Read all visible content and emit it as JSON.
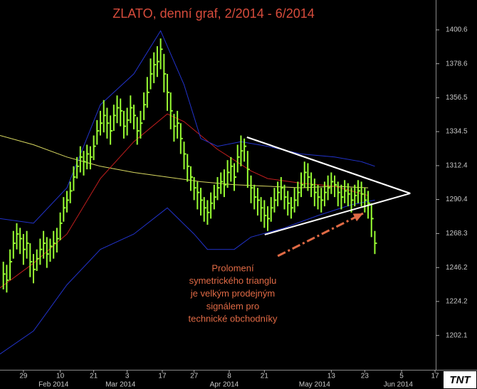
{
  "chart_data": {
    "type": "ohlc",
    "title": "ZLATO, denní graf, 2/2014 - 6/2014",
    "logo": "TNT",
    "xlim": [
      0,
      130.2
    ],
    "ylim": [
      1179.8,
      1420.0
    ],
    "yticks": [
      1400.6,
      1378.6,
      1356.5,
      1334.5,
      1312.4,
      1290.4,
      1268.3,
      1246.2,
      1224.2,
      1202.1
    ],
    "xticks": [
      {
        "value": 7,
        "label": "29"
      },
      {
        "value": 18,
        "label": "10"
      },
      {
        "value": 28,
        "label": "21"
      },
      {
        "value": 38,
        "label": "3"
      },
      {
        "value": 48.5,
        "label": "17"
      },
      {
        "value": 58,
        "label": "27"
      },
      {
        "value": 68.5,
        "label": "8"
      },
      {
        "value": 79,
        "label": "21"
      },
      {
        "value": 99,
        "label": "13"
      },
      {
        "value": 109,
        "label": "23"
      },
      {
        "value": 120,
        "label": "5"
      },
      {
        "value": 130,
        "label": "17"
      }
    ],
    "month_labels": [
      {
        "value": 16,
        "label": "Feb 2014"
      },
      {
        "value": 36,
        "label": "Mar 2014"
      },
      {
        "value": 67,
        "label": "Apr 2014"
      },
      {
        "value": 94,
        "label": "May 2014"
      },
      {
        "value": 119,
        "label": "Jun 2014"
      }
    ],
    "bar_color": "#99ff33",
    "x": [
      1,
      2,
      3,
      4,
      5,
      6,
      7,
      8,
      9,
      10,
      11,
      12,
      13,
      14,
      15,
      16,
      17,
      18,
      19,
      20,
      21,
      22,
      23,
      24,
      25,
      26,
      27,
      28,
      29,
      30,
      31,
      32,
      33,
      34,
      35,
      36,
      37,
      38,
      39,
      40,
      41,
      42,
      43,
      44,
      45,
      46,
      47,
      48,
      49,
      50,
      51,
      52,
      53,
      54,
      55,
      56,
      57,
      58,
      59,
      60,
      61,
      62,
      63,
      64,
      65,
      66,
      67,
      68,
      69,
      70,
      71,
      72,
      73,
      74,
      75,
      76,
      77,
      78,
      79,
      80,
      81,
      82,
      83,
      84,
      85,
      86,
      87,
      88,
      89,
      90,
      91,
      92,
      93,
      94,
      95,
      96,
      97,
      98,
      99,
      100,
      101,
      102,
      103,
      104,
      105,
      106,
      107,
      108,
      109,
      110,
      111,
      112
    ],
    "high": [
      1250,
      1248,
      1258,
      1270,
      1275,
      1272,
      1268,
      1270,
      1262,
      1255,
      1258,
      1265,
      1270,
      1266,
      1265,
      1270,
      1272,
      1282,
      1292,
      1296,
      1302,
      1312,
      1318,
      1325,
      1322,
      1326,
      1325,
      1332,
      1342,
      1348,
      1355,
      1350,
      1345,
      1352,
      1358,
      1356,
      1348,
      1350,
      1358,
      1352,
      1344,
      1348,
      1360,
      1370,
      1382,
      1386,
      1390,
      1395,
      1385,
      1372,
      1360,
      1346,
      1348,
      1340,
      1328,
      1320,
      1312,
      1305,
      1302,
      1298,
      1292,
      1290,
      1295,
      1300,
      1305,
      1308,
      1310,
      1316,
      1318,
      1314,
      1326,
      1332,
      1330,
      1322,
      1306,
      1300,
      1298,
      1292,
      1290,
      1286,
      1292,
      1298,
      1302,
      1305,
      1300,
      1296,
      1292,
      1298,
      1302,
      1308,
      1315,
      1314,
      1308,
      1304,
      1300,
      1298,
      1302,
      1306,
      1308,
      1306,
      1302,
      1300,
      1303,
      1301,
      1298,
      1300,
      1303,
      1302,
      1298,
      1296,
      1288,
      1270
    ],
    "low": [
      1232,
      1230,
      1238,
      1252,
      1258,
      1255,
      1248,
      1252,
      1240,
      1236,
      1244,
      1248,
      1252,
      1246,
      1250,
      1252,
      1256,
      1264,
      1276,
      1282,
      1288,
      1296,
      1304,
      1308,
      1306,
      1310,
      1310,
      1316,
      1326,
      1332,
      1334,
      1330,
      1326,
      1335,
      1340,
      1338,
      1330,
      1332,
      1340,
      1336,
      1326,
      1330,
      1342,
      1350,
      1362,
      1366,
      1370,
      1375,
      1360,
      1348,
      1336,
      1328,
      1330,
      1320,
      1310,
      1302,
      1296,
      1290,
      1284,
      1280,
      1276,
      1274,
      1278,
      1284,
      1290,
      1294,
      1292,
      1298,
      1302,
      1296,
      1308,
      1312,
      1315,
      1298,
      1288,
      1284,
      1280,
      1276,
      1272,
      1270,
      1276,
      1282,
      1286,
      1290,
      1284,
      1280,
      1278,
      1282,
      1286,
      1292,
      1298,
      1296,
      1292,
      1286,
      1284,
      1282,
      1286,
      1290,
      1294,
      1292,
      1286,
      1284,
      1288,
      1286,
      1282,
      1286,
      1288,
      1286,
      1282,
      1278,
      1266,
      1255
    ],
    "close": [
      1242,
      1238,
      1250,
      1262,
      1268,
      1265,
      1258,
      1262,
      1250,
      1245,
      1252,
      1258,
      1262,
      1255,
      1260,
      1262,
      1265,
      1275,
      1285,
      1290,
      1296,
      1305,
      1312,
      1318,
      1315,
      1320,
      1318,
      1325,
      1335,
      1340,
      1345,
      1340,
      1335,
      1345,
      1350,
      1348,
      1338,
      1342,
      1350,
      1345,
      1335,
      1340,
      1352,
      1360,
      1372,
      1378,
      1380,
      1388,
      1372,
      1360,
      1348,
      1338,
      1340,
      1330,
      1320,
      1312,
      1305,
      1298,
      1295,
      1290,
      1285,
      1282,
      1288,
      1292,
      1298,
      1302,
      1300,
      1308,
      1312,
      1305,
      1318,
      1322,
      1325,
      1310,
      1298,
      1292,
      1290,
      1285,
      1280,
      1278,
      1285,
      1290,
      1295,
      1298,
      1292,
      1288,
      1285,
      1290,
      1295,
      1300,
      1308,
      1305,
      1300,
      1295,
      1292,
      1290,
      1295,
      1298,
      1302,
      1300,
      1295,
      1292,
      1296,
      1294,
      1290,
      1293,
      1296,
      1294,
      1290,
      1288,
      1278,
      1262
    ],
    "indicators": [
      {
        "color": "#d8d860",
        "x": [
          0,
          10,
          20,
          30,
          40,
          50,
          60,
          70,
          80,
          90,
          100,
          110
        ],
        "values": [
          1332,
          1326,
          1318,
          1312,
          1308,
          1305,
          1302,
          1300,
          1299,
          1298,
          1299,
          1298
        ]
      },
      {
        "color": "#c41e1e",
        "x": [
          0,
          10,
          20,
          30,
          40,
          50,
          55,
          60,
          65,
          70,
          75,
          80,
          90,
          100,
          110
        ],
        "values": [
          1233,
          1249,
          1268,
          1304,
          1328,
          1346,
          1341,
          1332,
          1323,
          1316,
          1309,
          1304,
          1301,
          1299,
          1293
        ]
      },
      {
        "color": "#2233cc",
        "x": [
          0,
          10,
          20,
          30,
          40,
          48,
          55,
          60,
          65,
          72,
          80,
          90,
          100,
          108,
          112
        ],
        "values": [
          1278,
          1275,
          1298,
          1352,
          1372,
          1400,
          1365,
          1330,
          1325,
          1328,
          1325,
          1320,
          1318,
          1315,
          1312
        ]
      },
      {
        "color": "#2233cc",
        "x": [
          0,
          10,
          20,
          30,
          40,
          50,
          58,
          62,
          70,
          75,
          85,
          95,
          105,
          112
        ],
        "values": [
          1190,
          1205,
          1235,
          1258,
          1268,
          1285,
          1268,
          1258,
          1258,
          1266,
          1272,
          1280,
          1287,
          1290
        ]
      }
    ],
    "triangle": {
      "color": "#ffffff",
      "x": [
        73.8,
        122.6,
        79.1
      ],
      "values": [
        1330.9,
        1294.4,
        1267.6
      ]
    },
    "arrow": {
      "color": "#e06a45",
      "x": [
        83,
        108.5
      ],
      "values": [
        1253.7,
        1281.4
      ]
    },
    "annotation": {
      "color": "#e06a45",
      "lines": [
        "Prolomení",
        "symetrického trianglu",
        "je velkým prodejným",
        "signálem pro",
        "technické obchodníky"
      ]
    }
  }
}
